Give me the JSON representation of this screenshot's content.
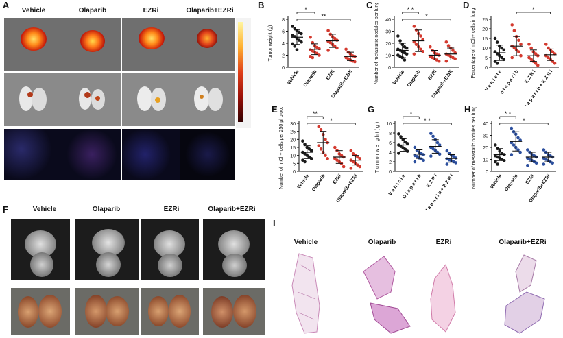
{
  "panel_letters": {
    "A": "A",
    "B": "B",
    "C": "C",
    "D": "D",
    "E": "E",
    "F": "F",
    "G": "G",
    "H": "H",
    "I": "I"
  },
  "groups": [
    "Vehicle",
    "Olaparib",
    "EZRi",
    "Olaparib+EZRi"
  ],
  "groups_spaced": [
    "V e h i c l e",
    "O l a p a r i b",
    "E Z R i",
    "O l a p a r i b + E Z R i"
  ],
  "colors": {
    "vehicle": "#1a1a1a",
    "olaparib": "#d43a2f",
    "ezri": "#d43a2f",
    "combo": "#d43a2f",
    "blue": "#2c4f9e",
    "white": "#ffffff"
  },
  "chart_data": [
    {
      "id": "B",
      "type": "scatter",
      "ylabel": "Tumor weight (g)",
      "categories": [
        "Vehicle",
        "Olaparib",
        "EZRi",
        "Olaparib+EZRi"
      ],
      "ylim": [
        0,
        8
      ],
      "yticks": [
        0,
        2,
        4,
        6,
        8
      ],
      "means": [
        5.0,
        3.0,
        4.4,
        1.8
      ],
      "sd": [
        1.2,
        0.9,
        1.1,
        0.7
      ],
      "points": [
        [
          6.8,
          6.4,
          6.1,
          5.8,
          5.6,
          5.3,
          5.1,
          4.8,
          4.5,
          4.2,
          3.9,
          3.5,
          2.9
        ],
        [
          5.0,
          4.1,
          3.6,
          3.3,
          3.1,
          2.9,
          2.7,
          2.5,
          2.3,
          2.0,
          1.8,
          1.6
        ],
        [
          6.1,
          5.5,
          5.1,
          4.8,
          4.5,
          4.3,
          4.1,
          3.8,
          3.5,
          3.2,
          2.8
        ],
        [
          3.0,
          2.5,
          2.2,
          1.9,
          1.8,
          1.6,
          1.4,
          1.2,
          1.0,
          0.9
        ]
      ],
      "sig": [
        {
          "from": 0,
          "to": 1,
          "label": "*"
        },
        {
          "from": 0,
          "to": 3,
          "label": "**"
        }
      ]
    },
    {
      "id": "C",
      "type": "scatter",
      "ylabel": "Number of metastatic nodules per lung",
      "categories": [
        "Vehicle",
        "Olaparib",
        "EZRi",
        "Olaparib+EZRi"
      ],
      "ylim": [
        0,
        40
      ],
      "yticks": [
        0,
        10,
        20,
        30,
        40
      ],
      "means": [
        14,
        22,
        10,
        11
      ],
      "sd": [
        6,
        9,
        4,
        5
      ],
      "points": [
        [
          26,
          22,
          19,
          17,
          16,
          15,
          14,
          13,
          12,
          11,
          10,
          9,
          8,
          6
        ],
        [
          34,
          31,
          28,
          26,
          23,
          21,
          19,
          17,
          15,
          13,
          11
        ],
        [
          17,
          14,
          12,
          11,
          10,
          9,
          8,
          7,
          6,
          5
        ],
        [
          21,
          18,
          16,
          14,
          12,
          11,
          10,
          9,
          8,
          7,
          5
        ]
      ],
      "sig": [
        {
          "from": 0,
          "to": 1,
          "label": "* *"
        },
        {
          "from": 0,
          "to": 3,
          "label": "*"
        }
      ]
    },
    {
      "id": "D",
      "type": "scatter",
      "ylabel": "Percentage of mCh+ cells in lung",
      "categories": [
        "V e h i c l e",
        "o l a p a r i b",
        "E Z R i",
        "o l a p a r i b + E Z R i"
      ],
      "ylim": [
        0,
        25
      ],
      "yticks": [
        0,
        5,
        10,
        15,
        20,
        25
      ],
      "means": [
        7.5,
        11,
        6,
        6.5
      ],
      "sd": [
        4,
        5,
        3,
        3
      ],
      "points": [
        [
          15,
          13,
          11,
          10,
          9,
          8,
          7,
          6,
          5,
          4,
          3,
          2
        ],
        [
          22,
          19,
          16,
          14,
          12,
          11,
          10,
          9,
          8,
          6,
          5
        ],
        [
          12,
          10,
          8,
          7,
          6,
          5,
          4,
          3,
          2,
          1
        ],
        [
          12,
          10,
          9,
          8,
          7,
          6,
          5,
          4,
          3,
          2
        ]
      ],
      "sig": [
        {
          "from": 1,
          "to": 3,
          "label": "*"
        }
      ]
    },
    {
      "id": "E",
      "type": "scatter",
      "ylabel": "Number of mCh+ cells per 250 μl blood",
      "categories": [
        "Vehicle",
        "Olaparib",
        "EZRi",
        "Olaparib+EZRi"
      ],
      "ylim": [
        0,
        30
      ],
      "yticks": [
        0,
        5,
        10,
        15,
        20,
        25,
        30
      ],
      "means": [
        12,
        18,
        9,
        7
      ],
      "sd": [
        4,
        7,
        4,
        3
      ],
      "points": [
        [
          19,
          17,
          15,
          14,
          13,
          12,
          11,
          10,
          9,
          8,
          7,
          6
        ],
        [
          28,
          26,
          23,
          20,
          18,
          16,
          14,
          12,
          10,
          8
        ],
        [
          15,
          13,
          11,
          10,
          9,
          8,
          7,
          6,
          5,
          3
        ],
        [
          13,
          11,
          10,
          9,
          8,
          7,
          6,
          5,
          4,
          3,
          2
        ]
      ],
      "sig": [
        {
          "from": 0,
          "to": 1,
          "label": "**"
        },
        {
          "from": 0,
          "to": 3,
          "label": "*"
        }
      ]
    },
    {
      "id": "G",
      "type": "scatter",
      "ylabel": "T u m o r  w e i g h t  ( g )",
      "categories": [
        "V e h i c l e",
        "O l a p a r i b",
        "E Z R i",
        "O l a p a r i b + E Z R i"
      ],
      "ylim": [
        0,
        10
      ],
      "yticks": [
        0,
        2,
        4,
        6,
        8,
        10
      ],
      "means": [
        5.5,
        3.6,
        5.2,
        2.7
      ],
      "sd": [
        1.3,
        0.9,
        1.4,
        0.8
      ],
      "points": [
        [
          7.8,
          7.2,
          6.6,
          6.1,
          5.8,
          5.5,
          5.2,
          4.9,
          4.6,
          4.2,
          3.8
        ],
        [
          5.0,
          4.4,
          4.0,
          3.7,
          3.5,
          3.3,
          3.1,
          2.8,
          2.6,
          2.3,
          2.0
        ],
        [
          7.9,
          7.3,
          6.6,
          6.0,
          5.5,
          5.0,
          4.7,
          4.4,
          4.0,
          3.6,
          3.2
        ],
        [
          4.3,
          3.8,
          3.4,
          3.1,
          2.8,
          2.6,
          2.4,
          2.2,
          2.0,
          1.8,
          1.5
        ]
      ],
      "sig": [
        {
          "from": 0,
          "to": 1,
          "label": "*"
        },
        {
          "from": 0,
          "to": 3,
          "label": "* *"
        }
      ]
    },
    {
      "id": "H",
      "type": "scatter",
      "ylabel": "Number of metastatic nodules per lung",
      "categories": [
        "Vehicle",
        "Olaparib",
        "EZRi",
        "Olaparib+EZRi"
      ],
      "ylim": [
        0,
        40
      ],
      "yticks": [
        0,
        10,
        20,
        30,
        40
      ],
      "means": [
        14,
        25,
        12,
        12
      ],
      "sd": [
        5,
        8,
        4,
        4
      ],
      "points": [
        [
          22,
          19,
          17,
          15,
          14,
          13,
          12,
          11,
          10,
          9,
          8,
          6
        ],
        [
          36,
          33,
          31,
          28,
          26,
          24,
          22,
          20,
          18,
          16,
          14
        ],
        [
          18,
          16,
          14,
          13,
          12,
          11,
          10,
          9,
          8,
          7,
          5
        ],
        [
          18,
          16,
          14,
          13,
          12,
          11,
          10,
          9,
          8,
          7,
          6
        ]
      ],
      "sig": [
        {
          "from": 0,
          "to": 1,
          "label": "* *"
        },
        {
          "from": 0,
          "to": 3,
          "label": "*"
        }
      ]
    }
  ]
}
